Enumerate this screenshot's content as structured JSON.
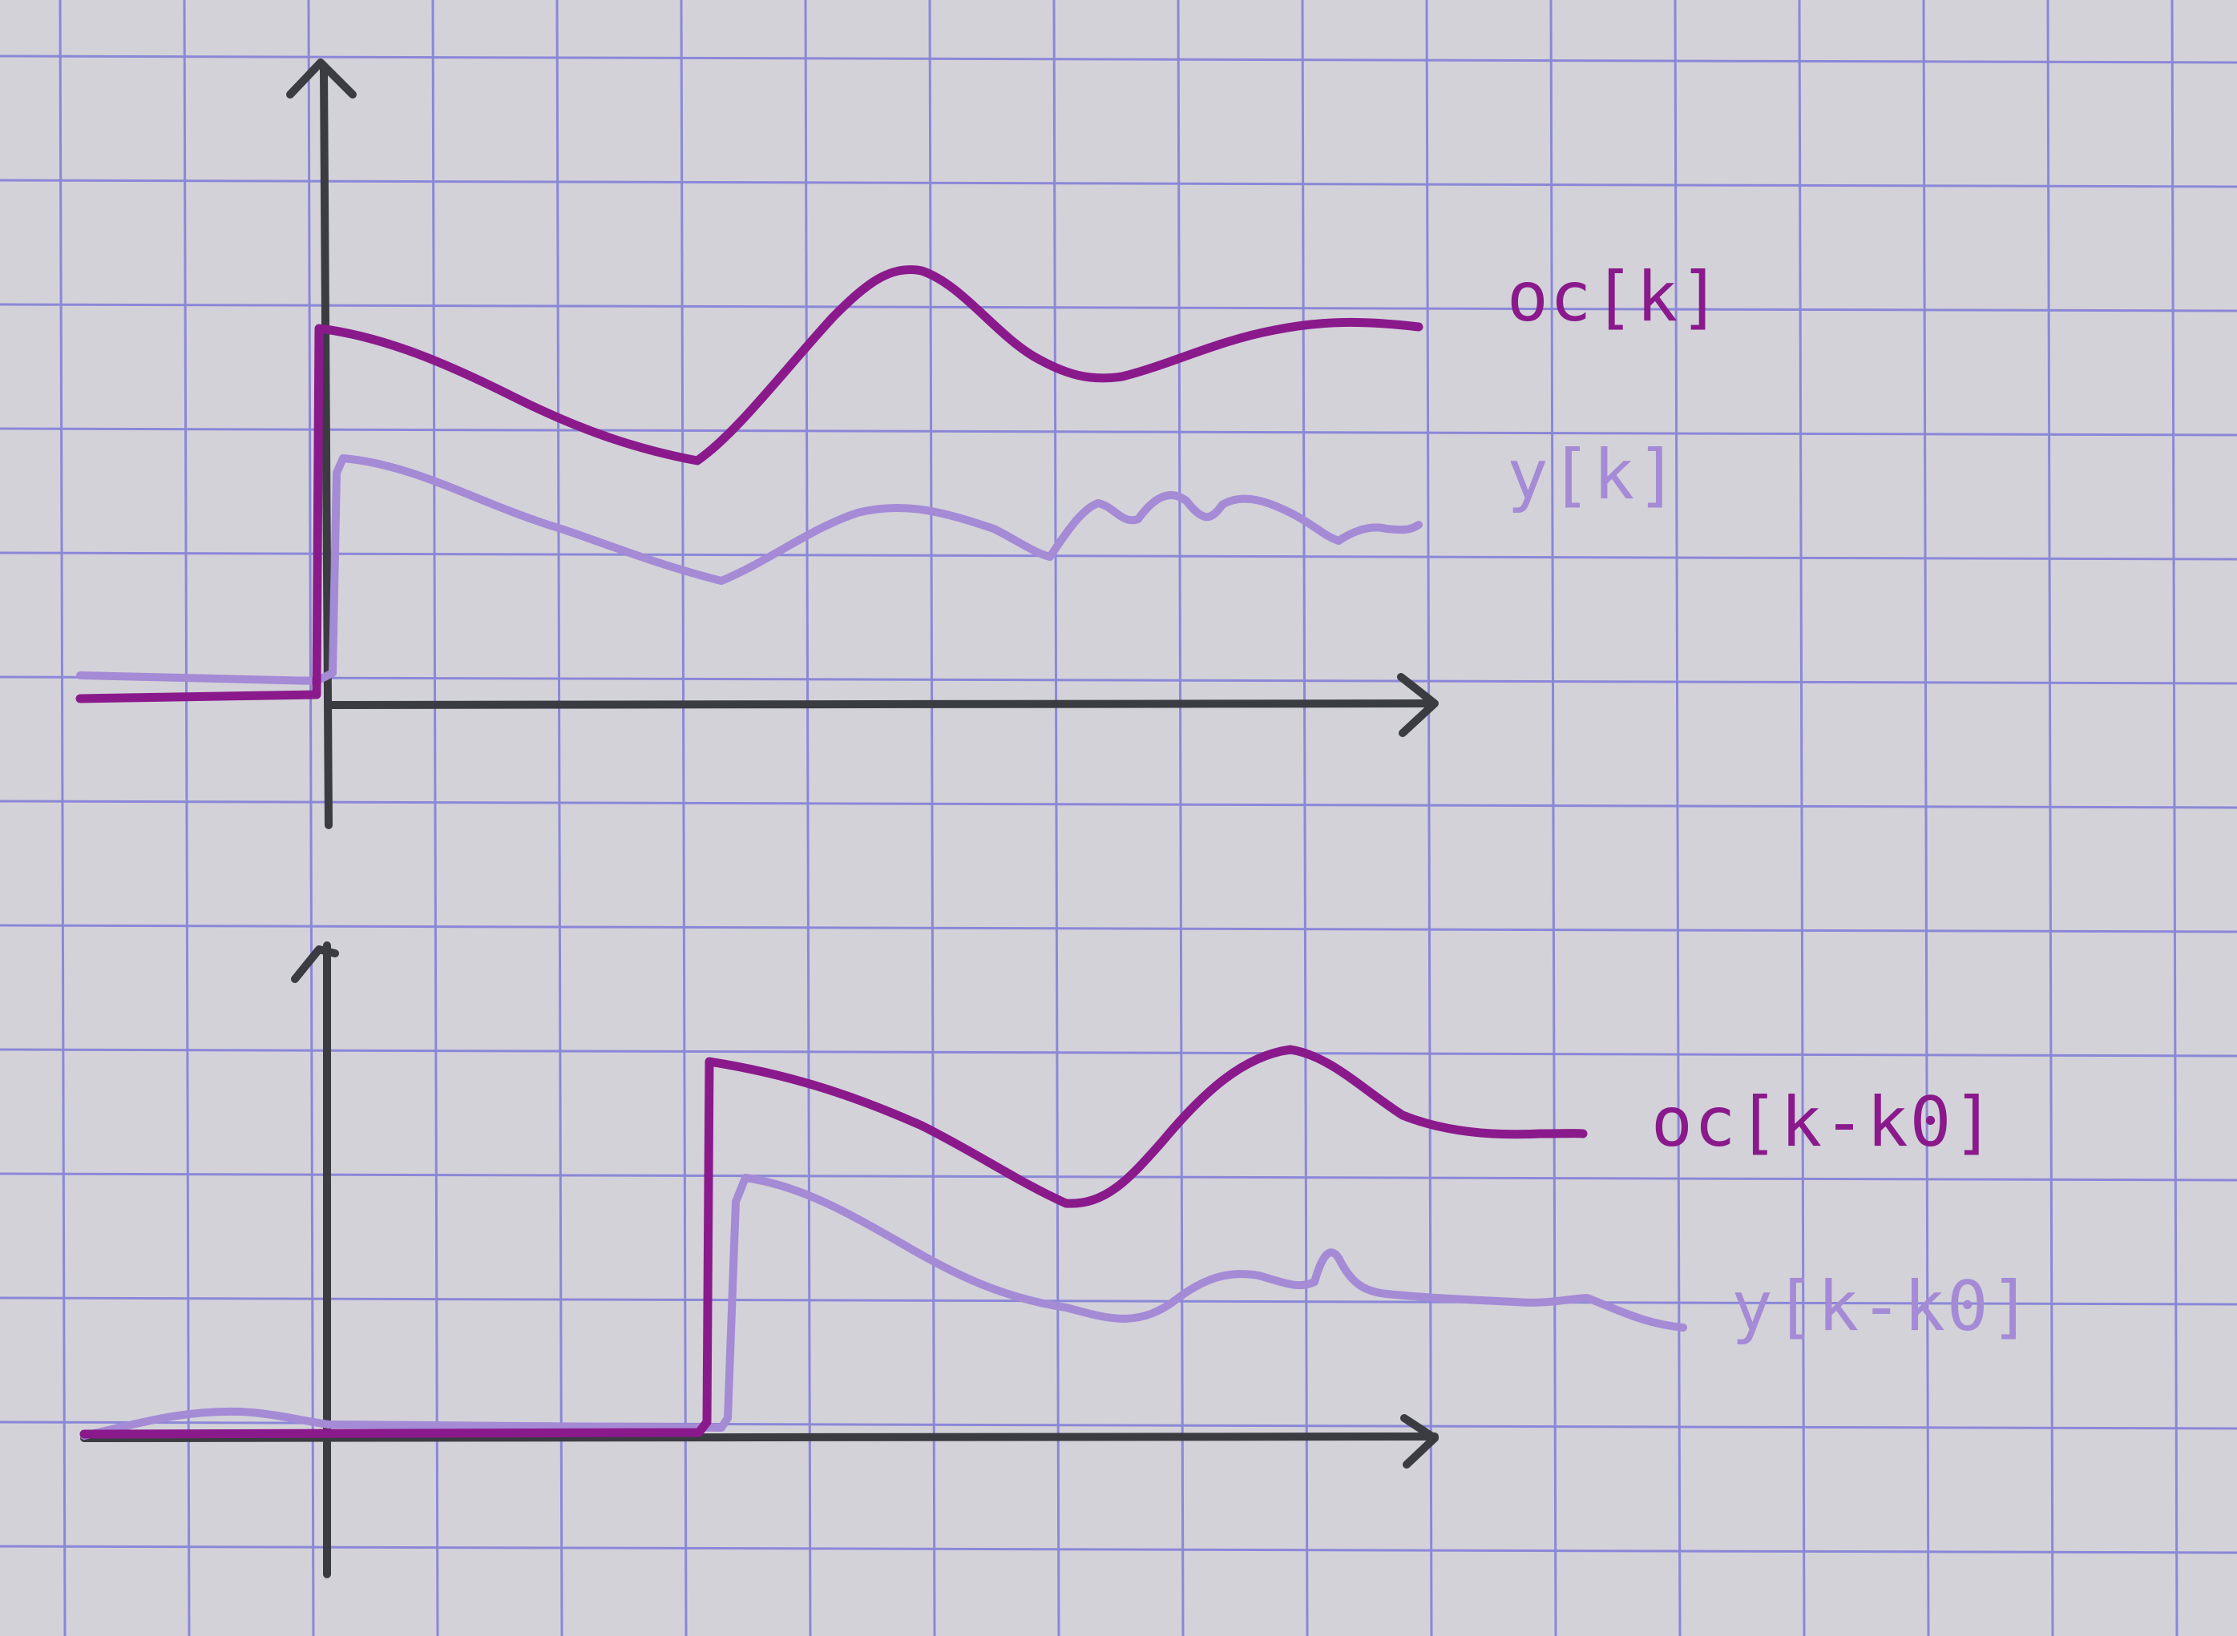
{
  "colors": {
    "paper": "#d3d2d9",
    "grid": "#8b87d8",
    "axis": "#3b3b42",
    "x_signal": "#8a1a8c",
    "y_signal": "#a58ad6"
  },
  "top_plot": {
    "x_label": "oc[k]",
    "y_label": "y[k]"
  },
  "bottom_plot": {
    "x_label": "oc[k-k0]",
    "y_label": "y[k-k0]"
  }
}
